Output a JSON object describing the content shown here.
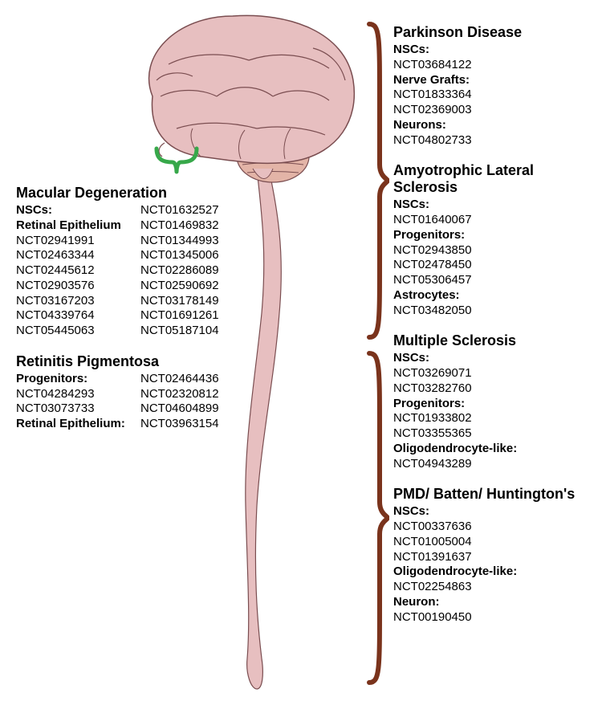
{
  "colors": {
    "brain_fill": "#e7bfc0",
    "brain_stroke": "#7a4d50",
    "cerebellum_fill": "#e3b4a7",
    "spinal_fill": "#e7bfc0",
    "green_bracket": "#37a84a",
    "brown_bracket": "#7a331c",
    "text": "#000000",
    "bg": "#ffffff"
  },
  "typography": {
    "title_fontsize": 18,
    "body_fontsize": 15,
    "font_family": "Arial"
  },
  "left": {
    "macular": {
      "title": "Macular Degeneration",
      "rows": [
        {
          "l": "NSCs:",
          "lb": true,
          "r": "NCT01632527"
        },
        {
          "l": "Retinal Epithelium",
          "lb": true,
          "r": "NCT01469832"
        },
        {
          "l": "NCT02941991",
          "r": "NCT01344993"
        },
        {
          "l": "NCT02463344",
          "r": "NCT01345006"
        },
        {
          "l": "NCT02445612",
          "r": "NCT02286089"
        },
        {
          "l": "NCT02903576",
          "r": "NCT02590692"
        },
        {
          "l": "NCT03167203",
          "r": "NCT03178149"
        },
        {
          "l": "NCT04339764",
          "r": "NCT01691261"
        },
        {
          "l": "NCT05445063",
          "r": "NCT05187104"
        }
      ]
    },
    "retinitis": {
      "title": "Retinitis Pigmentosa",
      "rows": [
        {
          "l": "Progenitors:",
          "lb": true,
          "r": "NCT02464436"
        },
        {
          "l": "NCT04284293",
          "r": "NCT02320812"
        },
        {
          "l": "NCT03073733",
          "r": "NCT04604899"
        },
        {
          "l": "Retinal Epithelium:",
          "lb": true,
          "r": "NCT03963154"
        }
      ]
    }
  },
  "right": {
    "parkinson": {
      "title": "Parkinson Disease",
      "lines": [
        {
          "t": "NSCs:",
          "b": true
        },
        {
          "t": "NCT03684122"
        },
        {
          "t": "Nerve Grafts:",
          "b": true
        },
        {
          "t": "NCT01833364"
        },
        {
          "t": "NCT02369003"
        },
        {
          "t": "Neurons:",
          "b": true
        },
        {
          "t": "NCT04802733"
        }
      ]
    },
    "als": {
      "title": "Amyotrophic Lateral Sclerosis",
      "lines": [
        {
          "t": "NSCs:",
          "b": true
        },
        {
          "t": "NCT01640067"
        },
        {
          "t": "Progenitors:",
          "b": true
        },
        {
          "t": "NCT02943850"
        },
        {
          "t": "NCT02478450"
        },
        {
          "t": "NCT05306457"
        },
        {
          "t": "Astrocytes:",
          "b": true
        },
        {
          "t": "NCT03482050"
        }
      ]
    },
    "ms": {
      "title": "Multiple Sclerosis",
      "lines": [
        {
          "t": "NSCs:",
          "b": true
        },
        {
          "t": "NCT03269071"
        },
        {
          "t": "NCT03282760"
        },
        {
          "t": "Progenitors:",
          "b": true
        },
        {
          "t": "NCT01933802"
        },
        {
          "t": "NCT03355365"
        },
        {
          "t": "Oligodendrocyte-like:",
          "b": true
        },
        {
          "t": "NCT04943289"
        }
      ]
    },
    "pmd": {
      "title": "PMD/ Batten/ Huntington's",
      "lines": [
        {
          "t": "NSCs:",
          "b": true
        },
        {
          "t": "NCT00337636"
        },
        {
          "t": "NCT01005004"
        },
        {
          "t": "NCT01391637"
        },
        {
          "t": "Oligodendrocyte-like:",
          "b": true
        },
        {
          "t": "NCT02254863"
        },
        {
          "t": "Neuron:",
          "b": true
        },
        {
          "t": "NCT00190450"
        }
      ]
    }
  }
}
